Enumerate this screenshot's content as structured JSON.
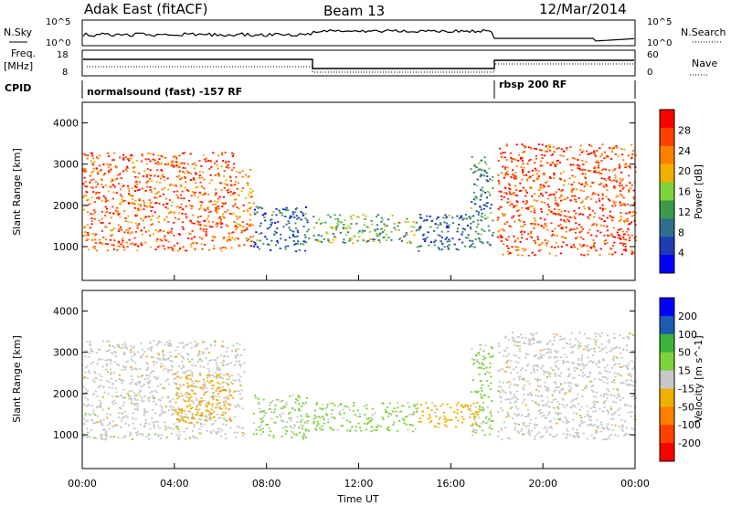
{
  "header": {
    "radar": "Adak East (fitACF)",
    "beam": "Beam 13",
    "date": "12/Mar/2014"
  },
  "panels": {
    "nsky_label": "N.Sky",
    "nsky_ticks": [
      "10^5",
      "10^0"
    ],
    "nsearch_label": "N.Search",
    "nsearch_ticks": [
      "10^5",
      "10^0"
    ],
    "freq_label_1": "Freq.",
    "freq_label_2": "[MHz]",
    "freq_ticks": [
      "18",
      "8"
    ],
    "nave_label": "Nave",
    "nave_ticks": [
      "60",
      "0"
    ],
    "cpid_label": "CPID",
    "cpid_1": "normalsound (fast) -157 RF",
    "cpid_2": "rbsp 200 RF"
  },
  "colors": {
    "power": [
      "#0000ff",
      "#1e3cb4",
      "#2e6f8e",
      "#3c9a4a",
      "#7fd23c",
      "#f0b000",
      "#ff8000",
      "#ff4000",
      "#ff0000"
    ],
    "velocity": [
      "#ff0000",
      "#ff4000",
      "#ff8000",
      "#f0b000",
      "#c8c8c8",
      "#7fd23c",
      "#3cb43c",
      "#1e5ab4",
      "#0000ff"
    ]
  },
  "chart_data": [
    {
      "type": "heatmap",
      "title": "",
      "xlabel": "Time UT",
      "ylabel": "Slant Range [km]",
      "x_ticks": [
        "00:00",
        "04:00",
        "08:00",
        "12:00",
        "16:00",
        "20:00",
        "00:00"
      ],
      "xlim_hours": [
        0,
        24
      ],
      "y_ticks": [
        1000,
        2000,
        3000,
        4000
      ],
      "ylim": [
        180,
        4500
      ],
      "colorbar_label": "Power [dB]",
      "colorbar_ticks": [
        "4",
        "8",
        "12",
        "16",
        "20",
        "24",
        "28"
      ],
      "colorbar_range": [
        0,
        30
      ],
      "regions": [
        {
          "t0": 0.0,
          "t1": 6.6,
          "r0": 900,
          "r1": 3300,
          "value": 24
        },
        {
          "t0": 6.5,
          "t1": 7.4,
          "r0": 1000,
          "r1": 2900,
          "value": 22
        },
        {
          "t0": 7.4,
          "t1": 9.8,
          "r0": 900,
          "r1": 2000,
          "value": 8
        },
        {
          "t0": 10.0,
          "t1": 14.5,
          "r0": 1100,
          "r1": 1800,
          "value": 13
        },
        {
          "t0": 14.5,
          "t1": 16.8,
          "r0": 900,
          "r1": 1800,
          "value": 8
        },
        {
          "t0": 16.8,
          "t1": 17.8,
          "r0": 1000,
          "r1": 3200,
          "value": 10
        },
        {
          "t0": 18.0,
          "t1": 24.0,
          "r0": 800,
          "r1": 3500,
          "value": 25
        }
      ]
    },
    {
      "type": "heatmap",
      "title": "",
      "xlabel": "Time UT",
      "ylabel": "Slant Range [km]",
      "x_ticks": [
        "00:00",
        "04:00",
        "08:00",
        "12:00",
        "16:00",
        "20:00",
        "00:00"
      ],
      "xlim_hours": [
        0,
        24
      ],
      "y_ticks": [
        1000,
        2000,
        3000,
        4000
      ],
      "ylim": [
        180,
        4500
      ],
      "colorbar_label": "Velocity [m s^-1]",
      "colorbar_ticks": [
        "200",
        "100",
        "50",
        "15",
        "-15",
        "-50",
        "-100",
        "-200"
      ],
      "colorbar_range": [
        -250,
        250
      ],
      "regions": [
        {
          "t0": 0.0,
          "t1": 7.0,
          "r0": 900,
          "r1": 3300,
          "value": 0
        },
        {
          "t0": 4.0,
          "t1": 6.5,
          "r0": 1300,
          "r1": 2500,
          "value": -60
        },
        {
          "t0": 7.4,
          "t1": 9.8,
          "r0": 900,
          "r1": 2000,
          "value": 40
        },
        {
          "t0": 10.0,
          "t1": 14.5,
          "r0": 1100,
          "r1": 1800,
          "value": 40
        },
        {
          "t0": 14.5,
          "t1": 17.2,
          "r0": 1200,
          "r1": 1800,
          "value": -50
        },
        {
          "t0": 16.8,
          "t1": 17.8,
          "r0": 1000,
          "r1": 3200,
          "value": 40
        },
        {
          "t0": 18.0,
          "t1": 24.0,
          "r0": 900,
          "r1": 3500,
          "value": 0
        }
      ]
    }
  ]
}
